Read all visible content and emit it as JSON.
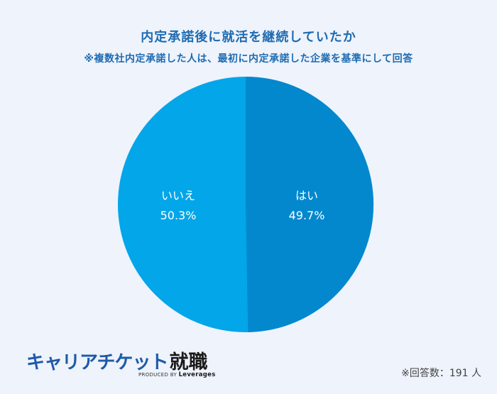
{
  "header": {
    "title": "内定承諾後に就活を継続していたか",
    "subtitle": "※複数社内定承諾した人は、最初に内定承諾した企業を基準にして回答"
  },
  "chart_data": {
    "type": "pie",
    "title": "内定承諾後に就活を継続していたか",
    "subtitle": "※複数社内定承諾した人は、最初に内定承諾した企業を基準にして回答",
    "categories": [
      "はい",
      "いいえ"
    ],
    "values": [
      49.7,
      50.3
    ],
    "unit": "%",
    "colors": [
      "#0388CE",
      "#03A6E8"
    ],
    "start_angle": "12 o'clock, clockwise",
    "legend": "none (labels inside slices)",
    "note": "※回答数：191 人"
  },
  "slices": [
    {
      "label": "はい",
      "value_text": "49.7%",
      "color": "#0388CE"
    },
    {
      "label": "いいえ",
      "value_text": "50.3%",
      "color": "#03A6E8"
    }
  ],
  "colors": {
    "background": "#EEF3FC",
    "title": "#1F6BB0"
  },
  "logo": {
    "main": "キャリアチケット",
    "sub": "就職",
    "produced_by": "PRODUCED BY",
    "brand": "Leverages"
  },
  "footer": {
    "respondents": "※回答数：191 人"
  }
}
